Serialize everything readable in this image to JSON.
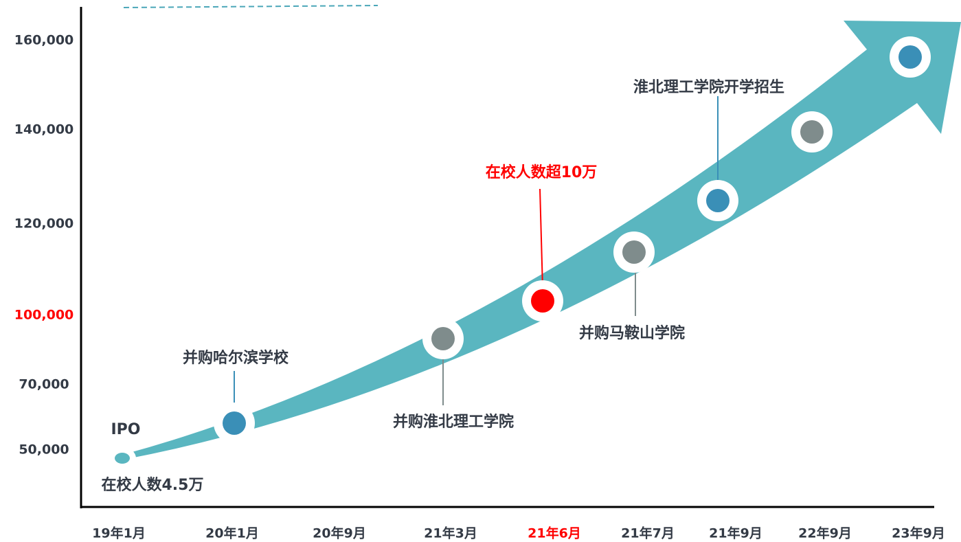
{
  "y_axis_labels": [
    "160,000",
    "140,000",
    "120,000",
    "100,000",
    "70,000",
    "50,000"
  ],
  "x_axis_labels": [
    "19年1月",
    "20年1月",
    "20年9月",
    "21年3月",
    "21年6月",
    "21年7月",
    "21年9月",
    "22年9月",
    "23年9月"
  ],
  "annotations": [
    "IPO",
    "在校人数4.5万",
    "并购哈尔滨学校",
    "并购淮北理工学院",
    "在校人数超10万",
    "并购马鞍山学院",
    "淮北理工学院开学招生"
  ]
}
